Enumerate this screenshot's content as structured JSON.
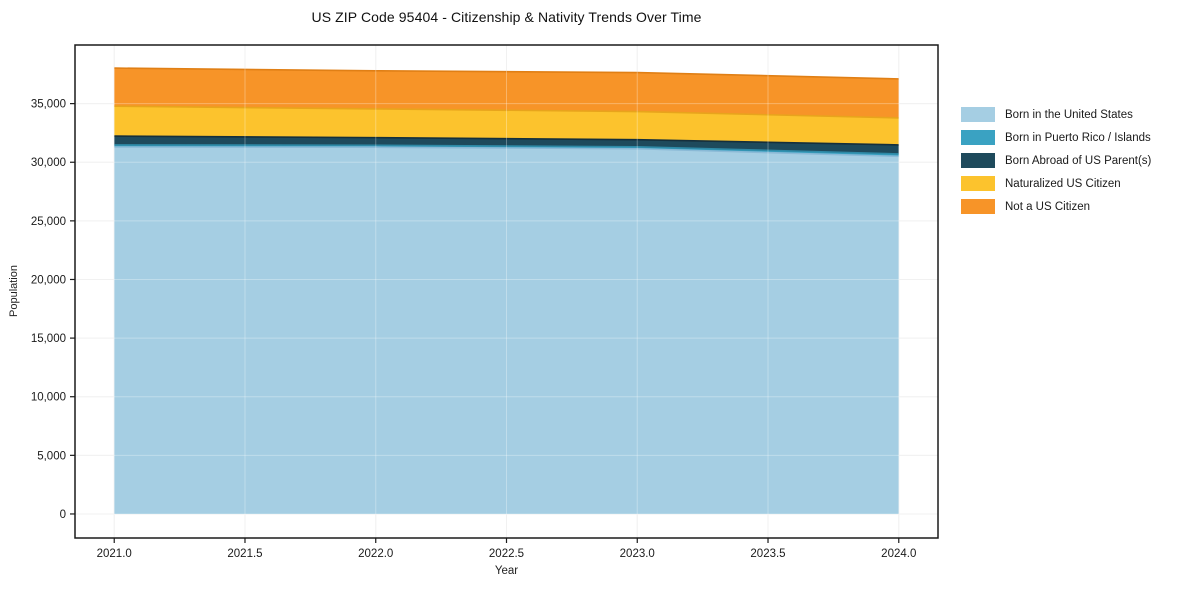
{
  "chart_data": {
    "type": "area",
    "stacked": true,
    "title": "US ZIP Code 95404 - Citizenship & Nativity Trends Over Time",
    "xlabel": "Year",
    "ylabel": "Population",
    "x": [
      2021,
      2022,
      2023,
      2024
    ],
    "series": [
      {
        "name": "Born in the United States",
        "color": "#a5cee3",
        "edge_color": "#8ab9d6",
        "values": [
          31300,
          31280,
          31150,
          30500
        ]
      },
      {
        "name": "Born in Puerto Rico / Islands",
        "color": "#3aa2c2",
        "edge_color": "#2e89a6",
        "values": [
          180,
          170,
          170,
          210
        ]
      },
      {
        "name": "Born Abroad of US Parent(s)",
        "color": "#1e4a5c",
        "edge_color": "#152f3c",
        "values": [
          750,
          650,
          600,
          770
        ]
      },
      {
        "name": "Naturalized US Citizen",
        "color": "#fcc32d",
        "edge_color": "#e8a41c",
        "values": [
          2550,
          2450,
          2400,
          2300
        ]
      },
      {
        "name": "Not a US Citizen",
        "color": "#f79428",
        "edge_color": "#e07f15",
        "values": [
          3250,
          3250,
          3330,
          3330
        ]
      }
    ],
    "xticks": {
      "values": [
        2021.0,
        2021.5,
        2022.0,
        2022.5,
        2023.0,
        2023.5,
        2024.0
      ],
      "labels": [
        "2021.0",
        "2021.5",
        "2022.0",
        "2022.5",
        "2023.0",
        "2023.5",
        "2024.0"
      ]
    },
    "yticks": {
      "values": [
        0,
        5000,
        10000,
        15000,
        20000,
        25000,
        30000,
        35000
      ],
      "labels": [
        "0",
        "5,000",
        "10,000",
        "15,000",
        "20,000",
        "25,000",
        "30,000",
        "35,000"
      ]
    },
    "xlim": [
      2020.85,
      2024.15
    ],
    "ylim": [
      -2050,
      40000
    ],
    "grid": true,
    "legend_position": "right",
    "axis_color": "#1a1a1a",
    "grid_color": "#ebebeb",
    "tick_label_color": "#1a1a1a"
  }
}
